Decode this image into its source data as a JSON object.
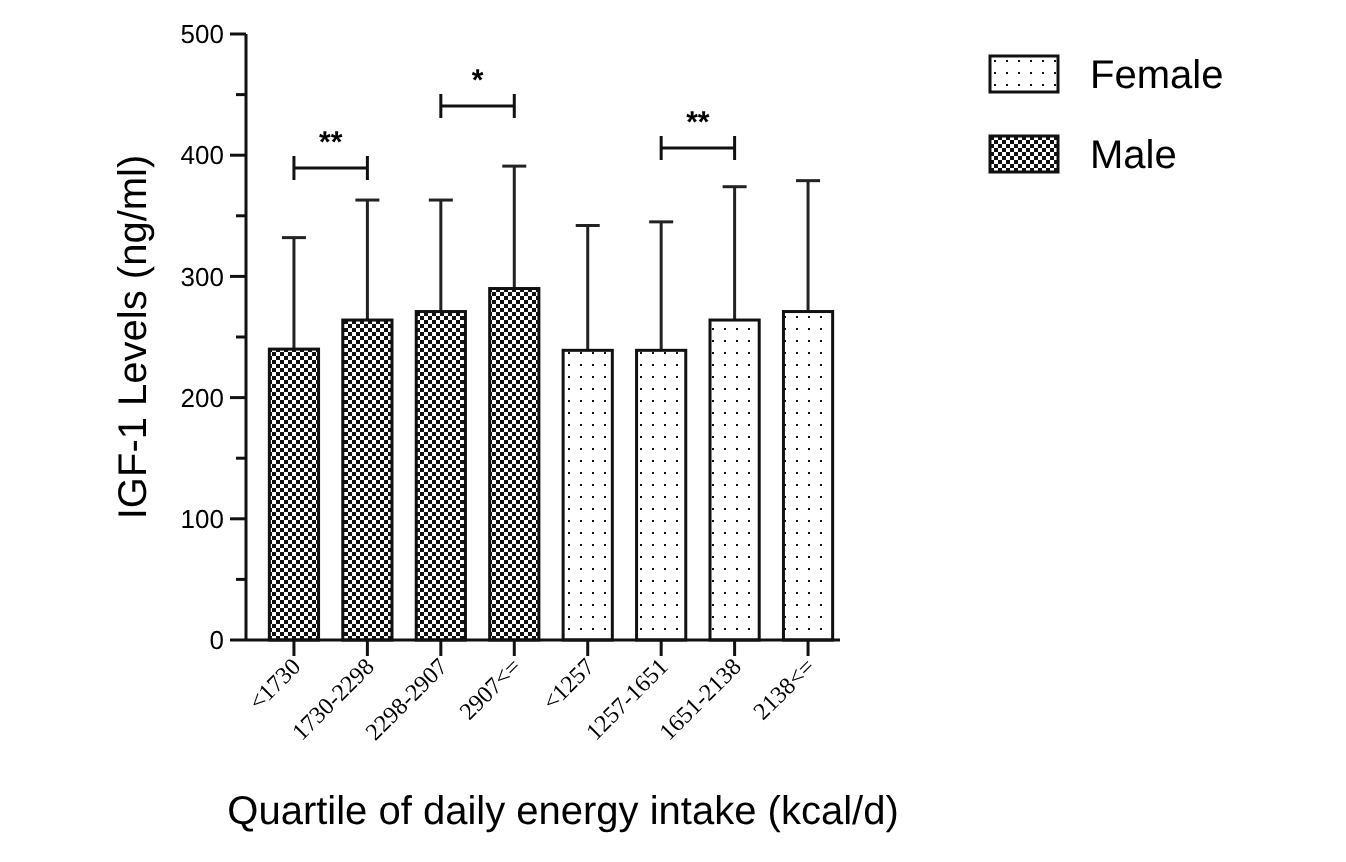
{
  "chart_data": {
    "type": "bar",
    "xlabel": "Quartile of daily energy intake (kcal/d)",
    "ylabel": "IGF-1 Levels (ng/ml)",
    "categories": [
      "<1730",
      "1730-2298",
      "2298-2907",
      "2907<=",
      "<1257",
      "1257-1651",
      "1651-2138",
      "2138<="
    ],
    "series": [
      {
        "name": "Female",
        "color": "#111111",
        "values": [
          null,
          null,
          null,
          null,
          239,
          239,
          264,
          271
        ],
        "errors": [
          null,
          null,
          null,
          null,
          103,
          106,
          110,
          108
        ]
      },
      {
        "name": "Male",
        "color": "#111111",
        "values": [
          240,
          264,
          271,
          290,
          null,
          null,
          null,
          null
        ],
        "errors": [
          92,
          99,
          92,
          101,
          null,
          null,
          null,
          null
        ]
      }
    ],
    "ylim": [
      0,
      500
    ],
    "yticks": [
      0,
      {
        "value": 50,
        "label": null
      },
      100,
      {
        "value": 150,
        "label": null
      },
      200,
      {
        "value": 250,
        "label": null
      },
      300,
      {
        "value": 350,
        "label": null
      },
      400,
      {
        "value": 450,
        "label": null
      },
      500
    ],
    "grid": false,
    "legend": "top right",
    "annotations": [
      "**",
      "*",
      "**"
    ]
  }
}
